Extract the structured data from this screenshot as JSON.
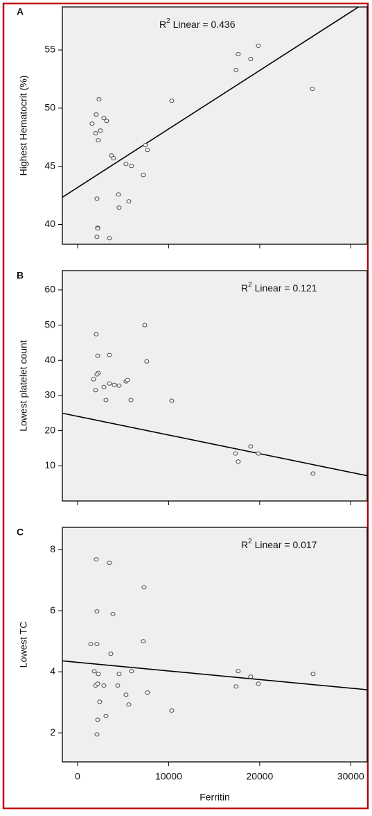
{
  "chart_data": [
    {
      "type": "scatter",
      "panel_label": "A",
      "y_label": "Highest Hematocrit (%)",
      "annotation": {
        "base": "R",
        "sup": "2",
        "text": " Linear = 0.436"
      },
      "xlim": [
        -1670,
        31800
      ],
      "ylim": [
        38.3,
        58.7
      ],
      "xticks": [
        0,
        10000,
        20000,
        30000
      ],
      "xtick_labels": false,
      "yticks": [
        40,
        45,
        50,
        55
      ],
      "x": [
        2360,
        2050,
        1600,
        2890,
        3190,
        2510,
        1980,
        2280,
        3730,
        3950,
        5320,
        5930,
        7450,
        7680,
        7220,
        4490,
        5630,
        4560,
        2130,
        2210,
        2210,
        2130,
        3500,
        10340,
        17640,
        19850,
        19010,
        17410,
        25780
      ],
      "values": [
        50.76,
        49.45,
        48.67,
        49.15,
        48.9,
        48.07,
        47.84,
        47.24,
        45.93,
        45.69,
        45.21,
        45.03,
        46.82,
        46.4,
        44.25,
        42.58,
        41.99,
        41.45,
        42.22,
        39.72,
        39.66,
        38.94,
        38.82,
        50.64,
        54.64,
        55.36,
        54.22,
        53.27,
        51.66
      ],
      "trendline": {
        "intercept": 43.18,
        "slope": 0.000503
      }
    },
    {
      "type": "scatter",
      "panel_label": "B",
      "y_label": "Lowest platelet count",
      "annotation": {
        "base": "R",
        "sup": "2",
        "text": " Linear = 0.121"
      },
      "xlim": [
        -1670,
        31800
      ],
      "ylim": [
        0,
        65.5
      ],
      "xticks": [
        0,
        10000,
        20000,
        30000
      ],
      "xtick_labels": false,
      "yticks": [
        10,
        20,
        30,
        40,
        50,
        60
      ],
      "x": [
        7380,
        2050,
        2210,
        3500,
        7600,
        2280,
        2130,
        1750,
        2890,
        3500,
        4030,
        4560,
        5320,
        5480,
        1980,
        3120,
        5860,
        10340,
        17340,
        17640,
        19010,
        19850,
        25860
      ],
      "values": [
        50,
        47.4,
        41.3,
        41.5,
        39.7,
        36.4,
        36,
        34.6,
        32.4,
        33.4,
        33,
        32.8,
        34,
        34.4,
        31.5,
        28.7,
        28.7,
        28.5,
        13.5,
        11.2,
        15.5,
        13.5,
        7.8
      ],
      "trendline": {
        "intercept": 24.07,
        "slope": -0.000531
      }
    },
    {
      "type": "scatter",
      "panel_label": "C",
      "y_label": "Lowest TC",
      "x_label": "Ferritin",
      "annotation": {
        "base": "R",
        "sup": "2",
        "text": " Linear = 0.017"
      },
      "xlim": [
        -1670,
        31800
      ],
      "ylim": [
        1.05,
        8.73
      ],
      "xticks": [
        0,
        10000,
        20000,
        30000
      ],
      "xtick_labels": true,
      "yticks": [
        2,
        4,
        6,
        8
      ],
      "x": [
        2050,
        3500,
        7300,
        2130,
        3880,
        7220,
        1450,
        2130,
        3650,
        1830,
        2280,
        5930,
        4560,
        17640,
        19010,
        19850,
        25860,
        17410,
        1980,
        2210,
        2890,
        4410,
        5320,
        5630,
        7680,
        2430,
        3120,
        10340,
        2210,
        2130
      ],
      "values": [
        7.68,
        7.57,
        6.77,
        5.98,
        5.89,
        5.0,
        4.91,
        4.91,
        4.59,
        4.02,
        3.93,
        4.02,
        3.93,
        4.02,
        3.84,
        3.61,
        3.93,
        3.52,
        3.55,
        3.61,
        3.55,
        3.55,
        3.25,
        2.93,
        3.32,
        3.02,
        2.55,
        2.73,
        2.43,
        1.95
      ],
      "trendline": {
        "intercept": 4.31,
        "slope": -2.82e-05
      }
    }
  ]
}
